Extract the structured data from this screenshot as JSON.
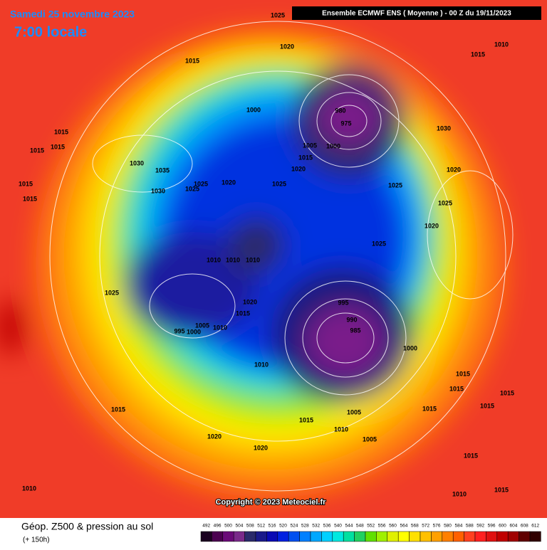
{
  "header": {
    "date": "Samedi 25 novembre 2023",
    "time": "7:00 locale",
    "model": "Ensemble ECMWF ENS  ( Moyenne )  -  00 Z du 19/11/2023",
    "copyright": "Copyright © 2023 Meteociel.fr"
  },
  "footer": {
    "field": "Géop. Z500 & pression au sol",
    "lead": "(+ 150h)"
  },
  "legend": {
    "levels": [
      492,
      496,
      500,
      504,
      508,
      512,
      516,
      520,
      524,
      528,
      532,
      536,
      540,
      544,
      548,
      552,
      556,
      560,
      564,
      568,
      572,
      576,
      580,
      584,
      588,
      592,
      596,
      600,
      604,
      608,
      612
    ],
    "colors": [
      "#1a0020",
      "#4b0050",
      "#6a0a78",
      "#7a2a8a",
      "#2a2a6a",
      "#1a1a8a",
      "#0a0ab4",
      "#0020e0",
      "#0050f0",
      "#0080ff",
      "#00a8ff",
      "#00d0ff",
      "#00e8e0",
      "#00e0a0",
      "#20d060",
      "#60e000",
      "#a0f000",
      "#e0f000",
      "#ffff00",
      "#ffe000",
      "#ffc000",
      "#ffa000",
      "#ff8000",
      "#ff6000",
      "#ff4020",
      "#ff2020",
      "#e01010",
      "#c00000",
      "#a00000",
      "#600000",
      "#300000"
    ]
  },
  "isobar_labels": [
    "1025",
    "1020",
    "1015",
    "1010",
    "1015",
    "1000",
    "980",
    "975",
    "1005",
    "1000",
    "1015",
    "1020",
    "1025",
    "1020",
    "1025",
    "1025",
    "1030",
    "1035",
    "1030",
    "1015",
    "1015",
    "1015",
    "1015",
    "1015",
    "1030",
    "1020",
    "1025",
    "1025",
    "1020",
    "1025",
    "1010",
    "1010",
    "1010",
    "1025",
    "1020",
    "1015",
    "995",
    "990",
    "985",
    "1000",
    "995",
    "1005",
    "1000",
    "1010",
    "1010",
    "1015",
    "1015",
    "1005",
    "1015",
    "1010",
    "1005",
    "1015",
    "1015",
    "1020",
    "1020",
    "1010",
    "1015",
    "1010",
    "1015",
    "1015",
    "1015"
  ]
}
